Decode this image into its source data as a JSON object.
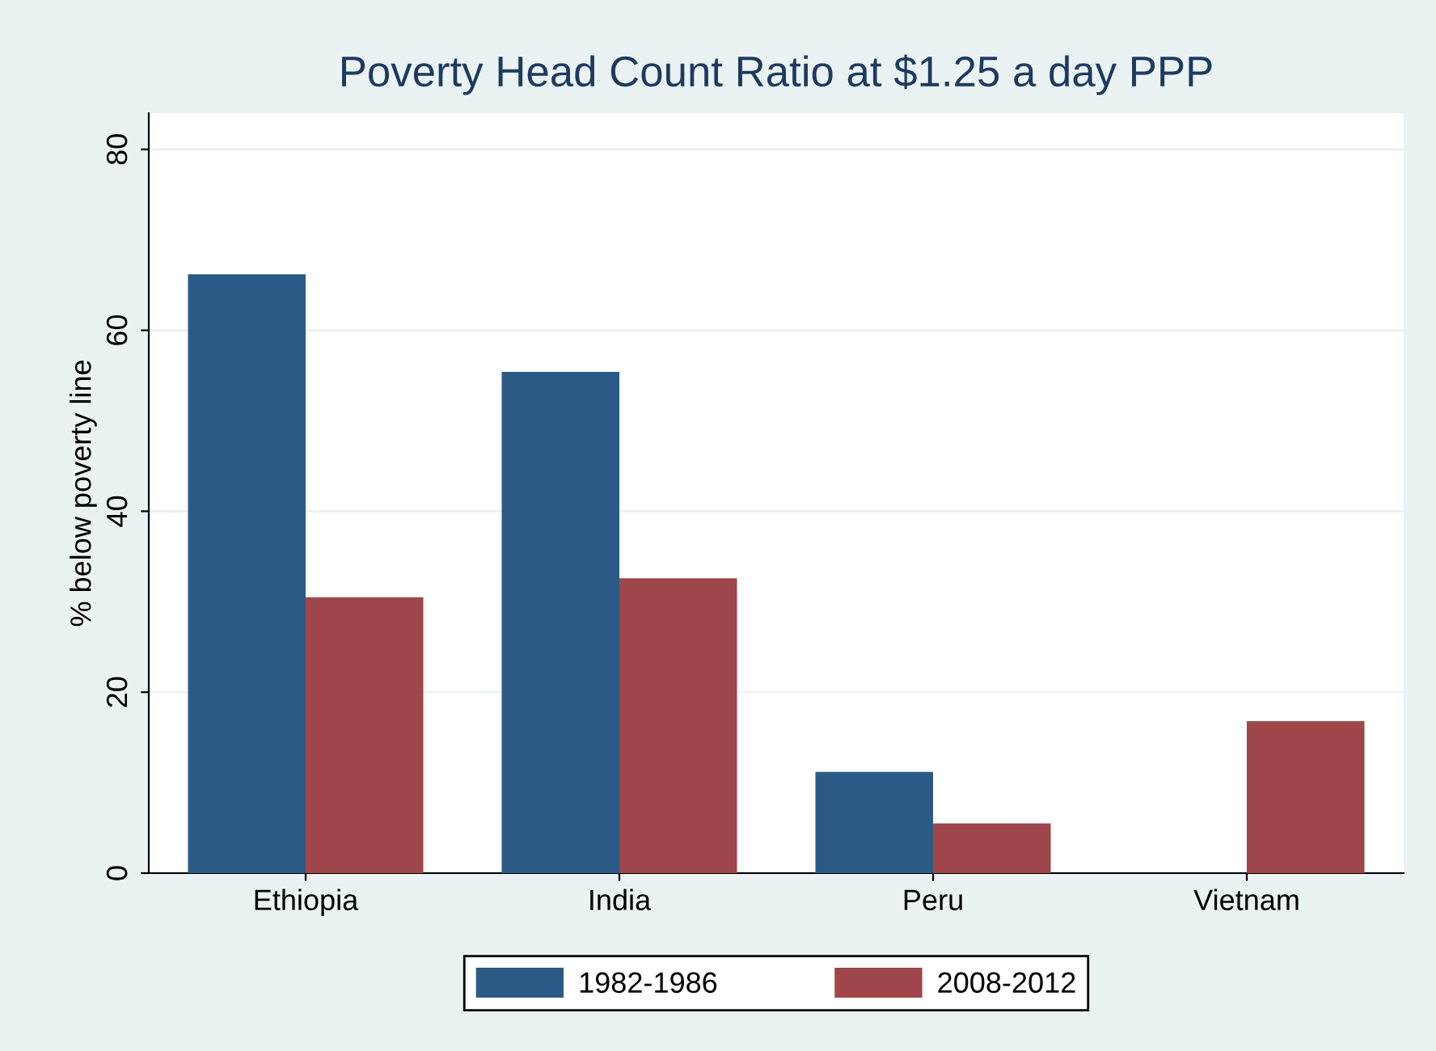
{
  "chart_data": {
    "type": "bar",
    "title": "Poverty Head Count Ratio at $1.25 a day PPP",
    "ylabel": "% below poverty line",
    "categories": [
      "Ethiopia",
      "India",
      "Peru",
      "Vietnam"
    ],
    "series": [
      {
        "name": "1982-1986",
        "color": "#2b5a86",
        "values": [
          66.2,
          55.4,
          11.2,
          null
        ]
      },
      {
        "name": "2008-2012",
        "color": "#9e4649",
        "values": [
          30.5,
          32.6,
          5.5,
          16.8
        ]
      }
    ],
    "ylim": [
      0,
      84
    ],
    "yticks": [
      0,
      20,
      40,
      60,
      80
    ],
    "grid": "y",
    "legend": "bottom"
  }
}
